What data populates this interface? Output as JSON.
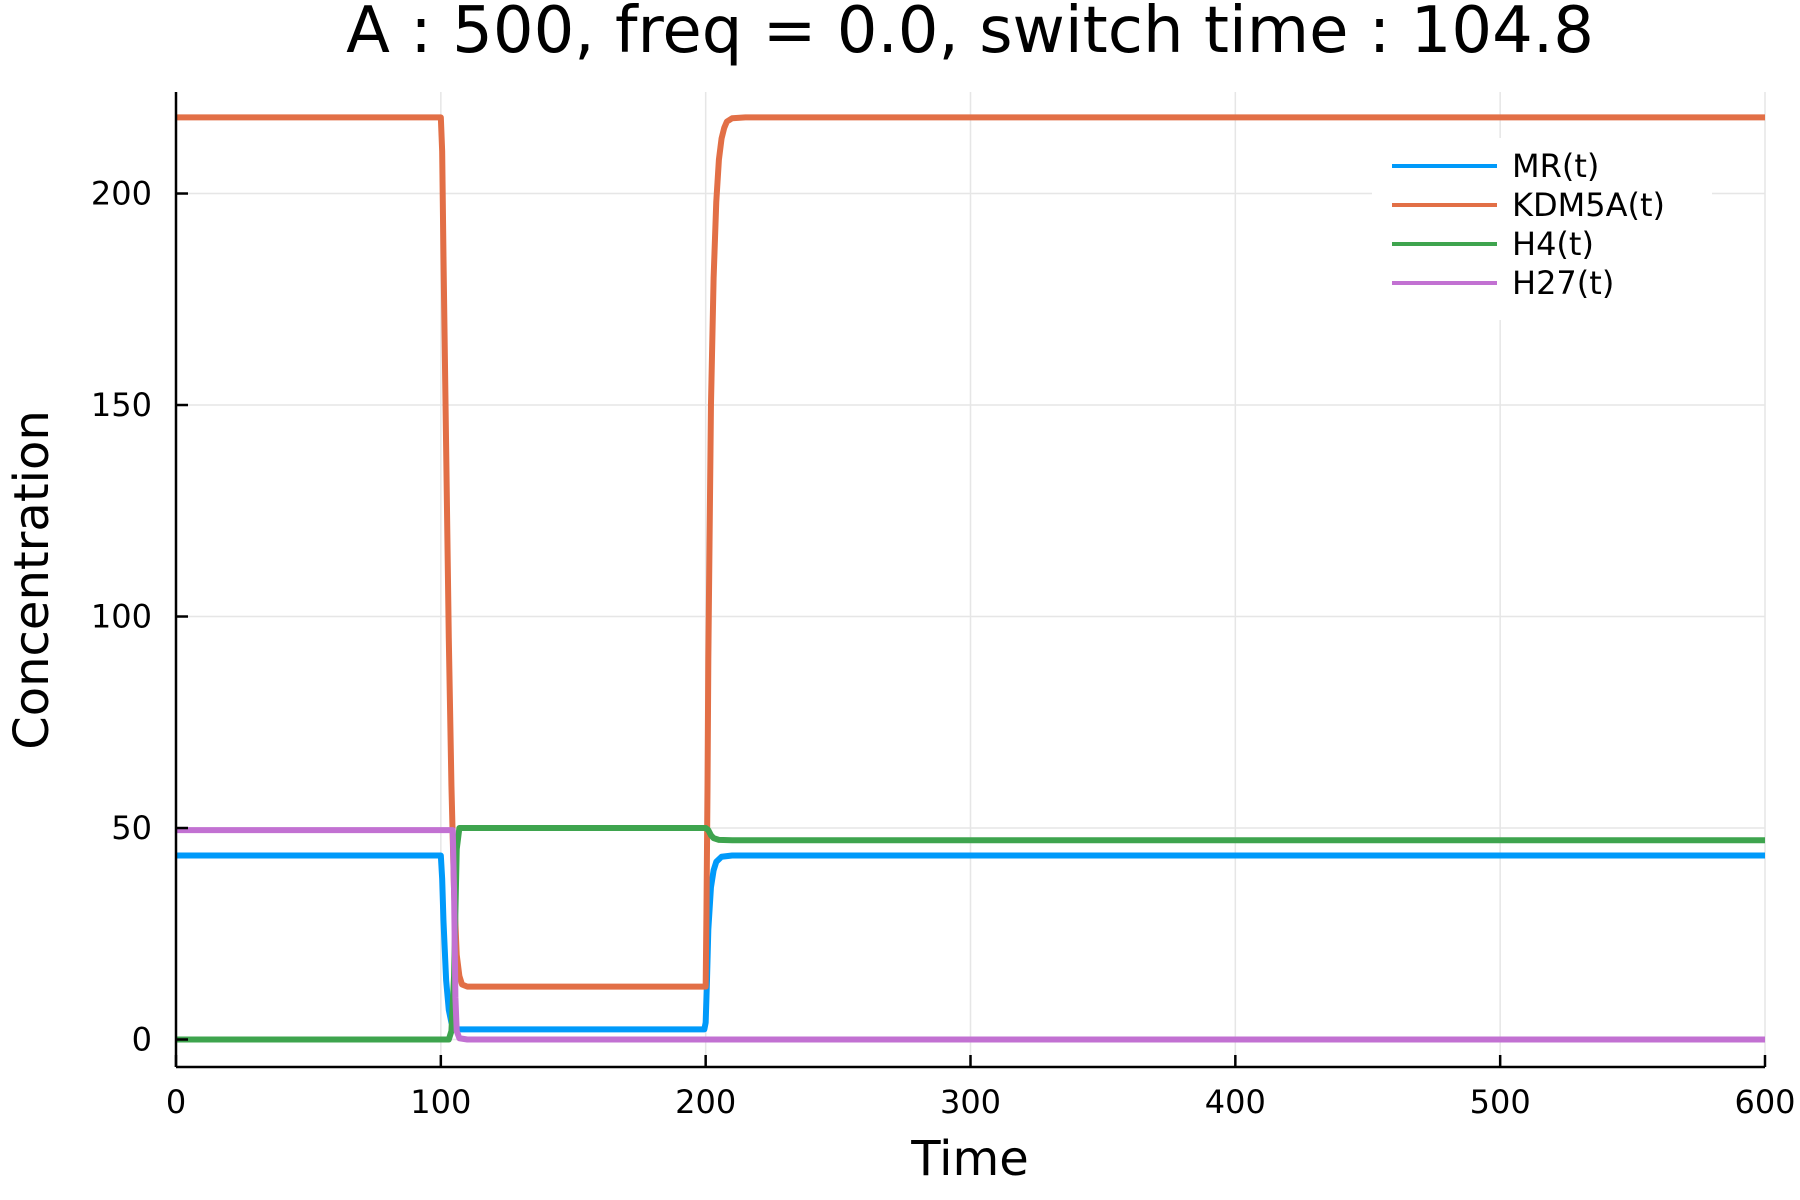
{
  "chart_data": {
    "type": "line",
    "title": "A : 500, freq = 0.0, switch time : 104.8",
    "xlabel": "Time",
    "ylabel": "Concentration",
    "xlim": [
      0,
      600
    ],
    "ylim": [
      -6.5,
      224
    ],
    "xticks": [
      0,
      100,
      200,
      300,
      400,
      500,
      600
    ],
    "yticks": [
      0,
      50,
      100,
      150,
      200
    ],
    "grid": true,
    "legend_position": "top-right",
    "series": [
      {
        "name": "MR(t)",
        "color": "#009AFA",
        "x": [
          0,
          100,
          100.5,
          101,
          102,
          103,
          104,
          105,
          106,
          110,
          199.5,
          200,
          200.5,
          201,
          202,
          203,
          204,
          206,
          210,
          600
        ],
        "y": [
          43.5,
          43.5,
          38,
          28,
          14,
          7,
          4,
          2.6,
          2.4,
          2.4,
          2.4,
          4,
          14,
          26,
          36,
          40,
          42,
          43.2,
          43.5,
          43.5
        ]
      },
      {
        "name": "KDM5A(t)",
        "color": "#E26F46",
        "x": [
          0,
          100,
          100.5,
          101,
          102,
          103,
          104,
          105,
          106,
          107,
          108,
          110,
          200,
          200.3,
          200.7,
          201,
          201.5,
          202,
          203,
          204,
          205,
          206,
          207,
          208,
          210,
          215,
          600
        ],
        "y": [
          218,
          218,
          210,
          185,
          140,
          95,
          60,
          35,
          20,
          15,
          13,
          12.5,
          12.5,
          30,
          60,
          90,
          120,
          150,
          180,
          198,
          208,
          213,
          215.5,
          217,
          217.8,
          218,
          218
        ]
      },
      {
        "name": "H4(t)",
        "color": "#3EA44E",
        "x": [
          0,
          103,
          104,
          105,
          106,
          107,
          110,
          200,
          201,
          202,
          203,
          205,
          210,
          600
        ],
        "y": [
          0,
          0,
          2,
          15,
          45,
          50,
          50,
          50,
          49.5,
          48.3,
          47.6,
          47.2,
          47.1,
          47.1
        ]
      },
      {
        "name": "H27(t)",
        "color": "#C271D2",
        "x": [
          0,
          104.5,
          105,
          105.5,
          106,
          107,
          110,
          600
        ],
        "y": [
          49.5,
          49.5,
          35,
          10,
          2,
          0.3,
          0,
          0
        ]
      }
    ]
  }
}
